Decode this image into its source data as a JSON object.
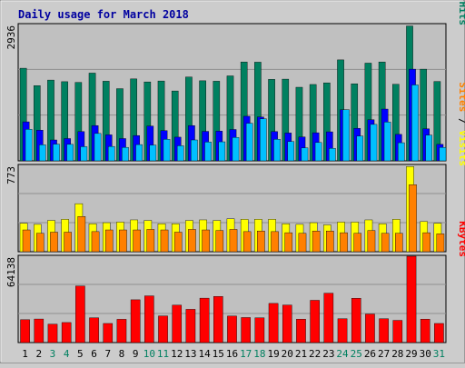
{
  "chart_data": {
    "type": "bar",
    "title": "Daily usage for March 2018",
    "categories": [
      "1",
      "2",
      "3",
      "4",
      "5",
      "6",
      "7",
      "8",
      "9",
      "10",
      "11",
      "12",
      "13",
      "14",
      "15",
      "16",
      "17",
      "18",
      "19",
      "20",
      "21",
      "22",
      "23",
      "24",
      "25",
      "26",
      "27",
      "28",
      "29",
      "30",
      "31"
    ],
    "weekend_days": [
      "3",
      "4",
      "10",
      "11",
      "17",
      "18",
      "24",
      "25",
      "31"
    ],
    "panels": [
      {
        "id": "hits",
        "ymax_label": "2936",
        "ymax": 2936,
        "axis_label_parts": [
          {
            "text": "Pages",
            "color": "#00c0ff"
          },
          {
            "text": " / ",
            "color": "#000000"
          },
          {
            "text": "Files",
            "color": "#0000ff"
          },
          {
            "text": " / ",
            "color": "#000000"
          },
          {
            "text": "Hits",
            "color": "#008060"
          }
        ],
        "series": [
          {
            "name": "Hits",
            "color": "#008060",
            "values": [
              1995,
              1620,
              1740,
              1705,
              1690,
              1890,
              1715,
              1555,
              1765,
              1700,
              1720,
              1505,
              1805,
              1725,
              1715,
              1830,
              2130,
              2125,
              1755,
              1760,
              1585,
              1645,
              1680,
              2175,
              1660,
              2105,
              2130,
              1650,
              2905,
              1975,
              1710
            ]
          },
          {
            "name": "Files",
            "color": "#0000ff",
            "values": [
              840,
              660,
              450,
              480,
              630,
              760,
              560,
              480,
              545,
              750,
              650,
              510,
              760,
              635,
              640,
              675,
              960,
              945,
              630,
              600,
              515,
              605,
              625,
              1100,
              700,
              885,
              1115,
              570,
              1975,
              690,
              355
            ]
          },
          {
            "name": "Pages",
            "color": "#00c0ff",
            "values": [
              680,
              345,
              360,
              355,
              305,
              590,
              310,
              290,
              350,
              340,
              465,
              325,
              450,
              405,
              410,
              505,
              810,
              905,
              465,
              415,
              280,
              395,
              270,
              1100,
              535,
              785,
              835,
              390,
              1635,
              555,
              290
            ]
          }
        ]
      },
      {
        "id": "visits",
        "ymax_label": "773",
        "ymax": 773,
        "axis_label_parts": [
          {
            "text": "Sites",
            "color": "#ff8000"
          },
          {
            "text": " / ",
            "color": "#000000"
          },
          {
            "text": "Visits",
            "color": "#ffff00"
          }
        ],
        "series": [
          {
            "name": "Visits",
            "color": "#ffff00",
            "values": [
              255,
              245,
              280,
              290,
              430,
              250,
              260,
              265,
              285,
              280,
              250,
              250,
              280,
              285,
              280,
              295,
              290,
              290,
              290,
              250,
              245,
              260,
              240,
              265,
              265,
              285,
              250,
              290,
              763,
              270,
              255
            ]
          },
          {
            "name": "Sites",
            "color": "#ff8000",
            "values": [
              195,
              165,
              175,
              175,
              315,
              180,
              195,
              195,
              195,
              200,
              195,
              175,
              200,
              195,
              190,
              200,
              180,
              185,
              180,
              170,
              165,
              185,
              185,
              170,
              165,
              190,
              165,
              165,
              600,
              170,
              160
            ]
          }
        ]
      },
      {
        "id": "kbytes",
        "ymax_label": "64138",
        "ymax": 64138,
        "axis_label_parts": [
          {
            "text": "KBytes",
            "color": "#ff0000"
          }
        ],
        "series": [
          {
            "name": "KBytes",
            "color": "#ff0000",
            "values": [
              17000,
              17500,
              13700,
              14900,
              42000,
              18400,
              14200,
              17300,
              31800,
              34700,
              19800,
              27800,
              24700,
              33000,
              34300,
              19700,
              18600,
              18400,
              29100,
              27900,
              17400,
              31400,
              36700,
              17700,
              32900,
              21200,
              17700,
              16500,
              64138,
              17400,
              14200
            ]
          }
        ]
      }
    ]
  }
}
